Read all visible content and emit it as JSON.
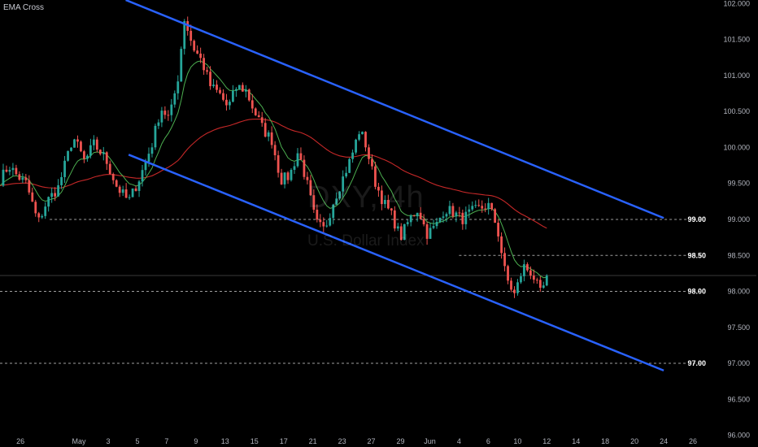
{
  "indicator_label": "EMA Cross",
  "watermark": {
    "symbol": "DXY, 4h",
    "name": "U.S. Dollar Index"
  },
  "colors": {
    "background": "#000000",
    "up": "#26a69a",
    "down": "#ef5350",
    "ema_fast": "#4caf50",
    "ema_slow": "#c62828",
    "channel": "#2962ff",
    "level_line": "#9e9e9e",
    "axis_text": "#b2b5be"
  },
  "chart_data": {
    "type": "candlestick",
    "title": "",
    "xlabel": "",
    "ylabel": "",
    "ylim": [
      95.95,
      102.05
    ],
    "grid": false,
    "y_ticks": [
      "102.000",
      "101.500",
      "101.000",
      "100.500",
      "100.000",
      "99.500",
      "99.000",
      "98.500",
      "98.000",
      "97.500",
      "97.000",
      "96.500",
      "96.000"
    ],
    "y_tick_values": [
      102.0,
      101.5,
      101.0,
      100.5,
      100.0,
      99.5,
      99.0,
      98.5,
      98.0,
      97.5,
      97.0,
      96.5,
      96.0
    ],
    "x_ticks": [
      "26",
      "May",
      "3",
      "5",
      "7",
      "9",
      "13",
      "15",
      "17",
      "21",
      "23",
      "27",
      "29",
      "Jun",
      "4",
      "6",
      "10",
      "12",
      "14",
      "18",
      "20",
      "24",
      "26"
    ],
    "x_tick_values": [
      1,
      3,
      4,
      5,
      6,
      7,
      8,
      9,
      10,
      11,
      12,
      13,
      14,
      15,
      16,
      17,
      18,
      19,
      20,
      21,
      22,
      23,
      24
    ],
    "x_range": [
      0.3,
      24.5
    ],
    "price_levels": [
      {
        "label": "99.00",
        "value": 99.0,
        "from_x": 2.0
      },
      {
        "label": "98.50",
        "value": 98.5,
        "from_x": 16.0
      },
      {
        "label": "98.00",
        "value": 98.0,
        "from_x": 0.3
      },
      {
        "label": "97.00",
        "value": 97.0,
        "from_x": 0.3
      }
    ],
    "current_price": 98.22,
    "channel_lines": [
      {
        "name": "",
        "points": [
          [
            4.6,
            102.05
          ],
          [
            23.0,
            99.02
          ]
        ]
      },
      {
        "name": "",
        "points": [
          [
            4.7,
            99.9
          ],
          [
            23.0,
            96.9
          ]
        ]
      }
    ],
    "close_anchors": [
      [
        0.3,
        99.55
      ],
      [
        0.6,
        99.75
      ],
      [
        0.9,
        99.6
      ],
      [
        1.2,
        99.5
      ],
      [
        1.6,
        98.95
      ],
      [
        1.9,
        99.25
      ],
      [
        2.3,
        99.45
      ],
      [
        2.8,
        100.15
      ],
      [
        3.2,
        99.8
      ],
      [
        3.5,
        100.05
      ],
      [
        3.9,
        99.85
      ],
      [
        4.3,
        99.45
      ],
      [
        4.7,
        99.25
      ],
      [
        5.1,
        99.6
      ],
      [
        5.5,
        100.05
      ],
      [
        5.8,
        100.55
      ],
      [
        6.1,
        100.4
      ],
      [
        6.4,
        101.0
      ],
      [
        6.6,
        101.8
      ],
      [
        6.9,
        101.4
      ],
      [
        7.2,
        101.2
      ],
      [
        7.5,
        100.85
      ],
      [
        7.8,
        100.75
      ],
      [
        8.1,
        100.55
      ],
      [
        8.4,
        100.85
      ],
      [
        8.7,
        100.8
      ],
      [
        9.0,
        100.5
      ],
      [
        9.3,
        100.25
      ],
      [
        9.6,
        100.1
      ],
      [
        9.9,
        99.55
      ],
      [
        10.2,
        99.6
      ],
      [
        10.5,
        99.95
      ],
      [
        10.8,
        99.5
      ],
      [
        11.1,
        98.95
      ],
      [
        11.4,
        98.85
      ],
      [
        11.7,
        99.25
      ],
      [
        12.0,
        99.55
      ],
      [
        12.3,
        99.85
      ],
      [
        12.6,
        100.25
      ],
      [
        12.8,
        100.05
      ],
      [
        13.1,
        99.55
      ],
      [
        13.4,
        99.25
      ],
      [
        13.7,
        99.05
      ],
      [
        14.0,
        98.75
      ],
      [
        14.3,
        99.0
      ],
      [
        14.6,
        99.15
      ],
      [
        14.9,
        98.8
      ],
      [
        15.2,
        98.9
      ],
      [
        15.5,
        99.15
      ],
      [
        15.8,
        99.1
      ],
      [
        16.1,
        99.0
      ],
      [
        16.4,
        99.1
      ],
      [
        16.7,
        99.15
      ],
      [
        17.0,
        99.2
      ],
      [
        17.3,
        98.9
      ],
      [
        17.6,
        98.2
      ],
      [
        17.9,
        97.95
      ],
      [
        18.2,
        98.35
      ],
      [
        18.5,
        98.25
      ],
      [
        18.8,
        97.95
      ],
      [
        19.0,
        98.2
      ]
    ],
    "candle_count": 170,
    "ema_fast_period": 9,
    "ema_slow_period": 21
  }
}
